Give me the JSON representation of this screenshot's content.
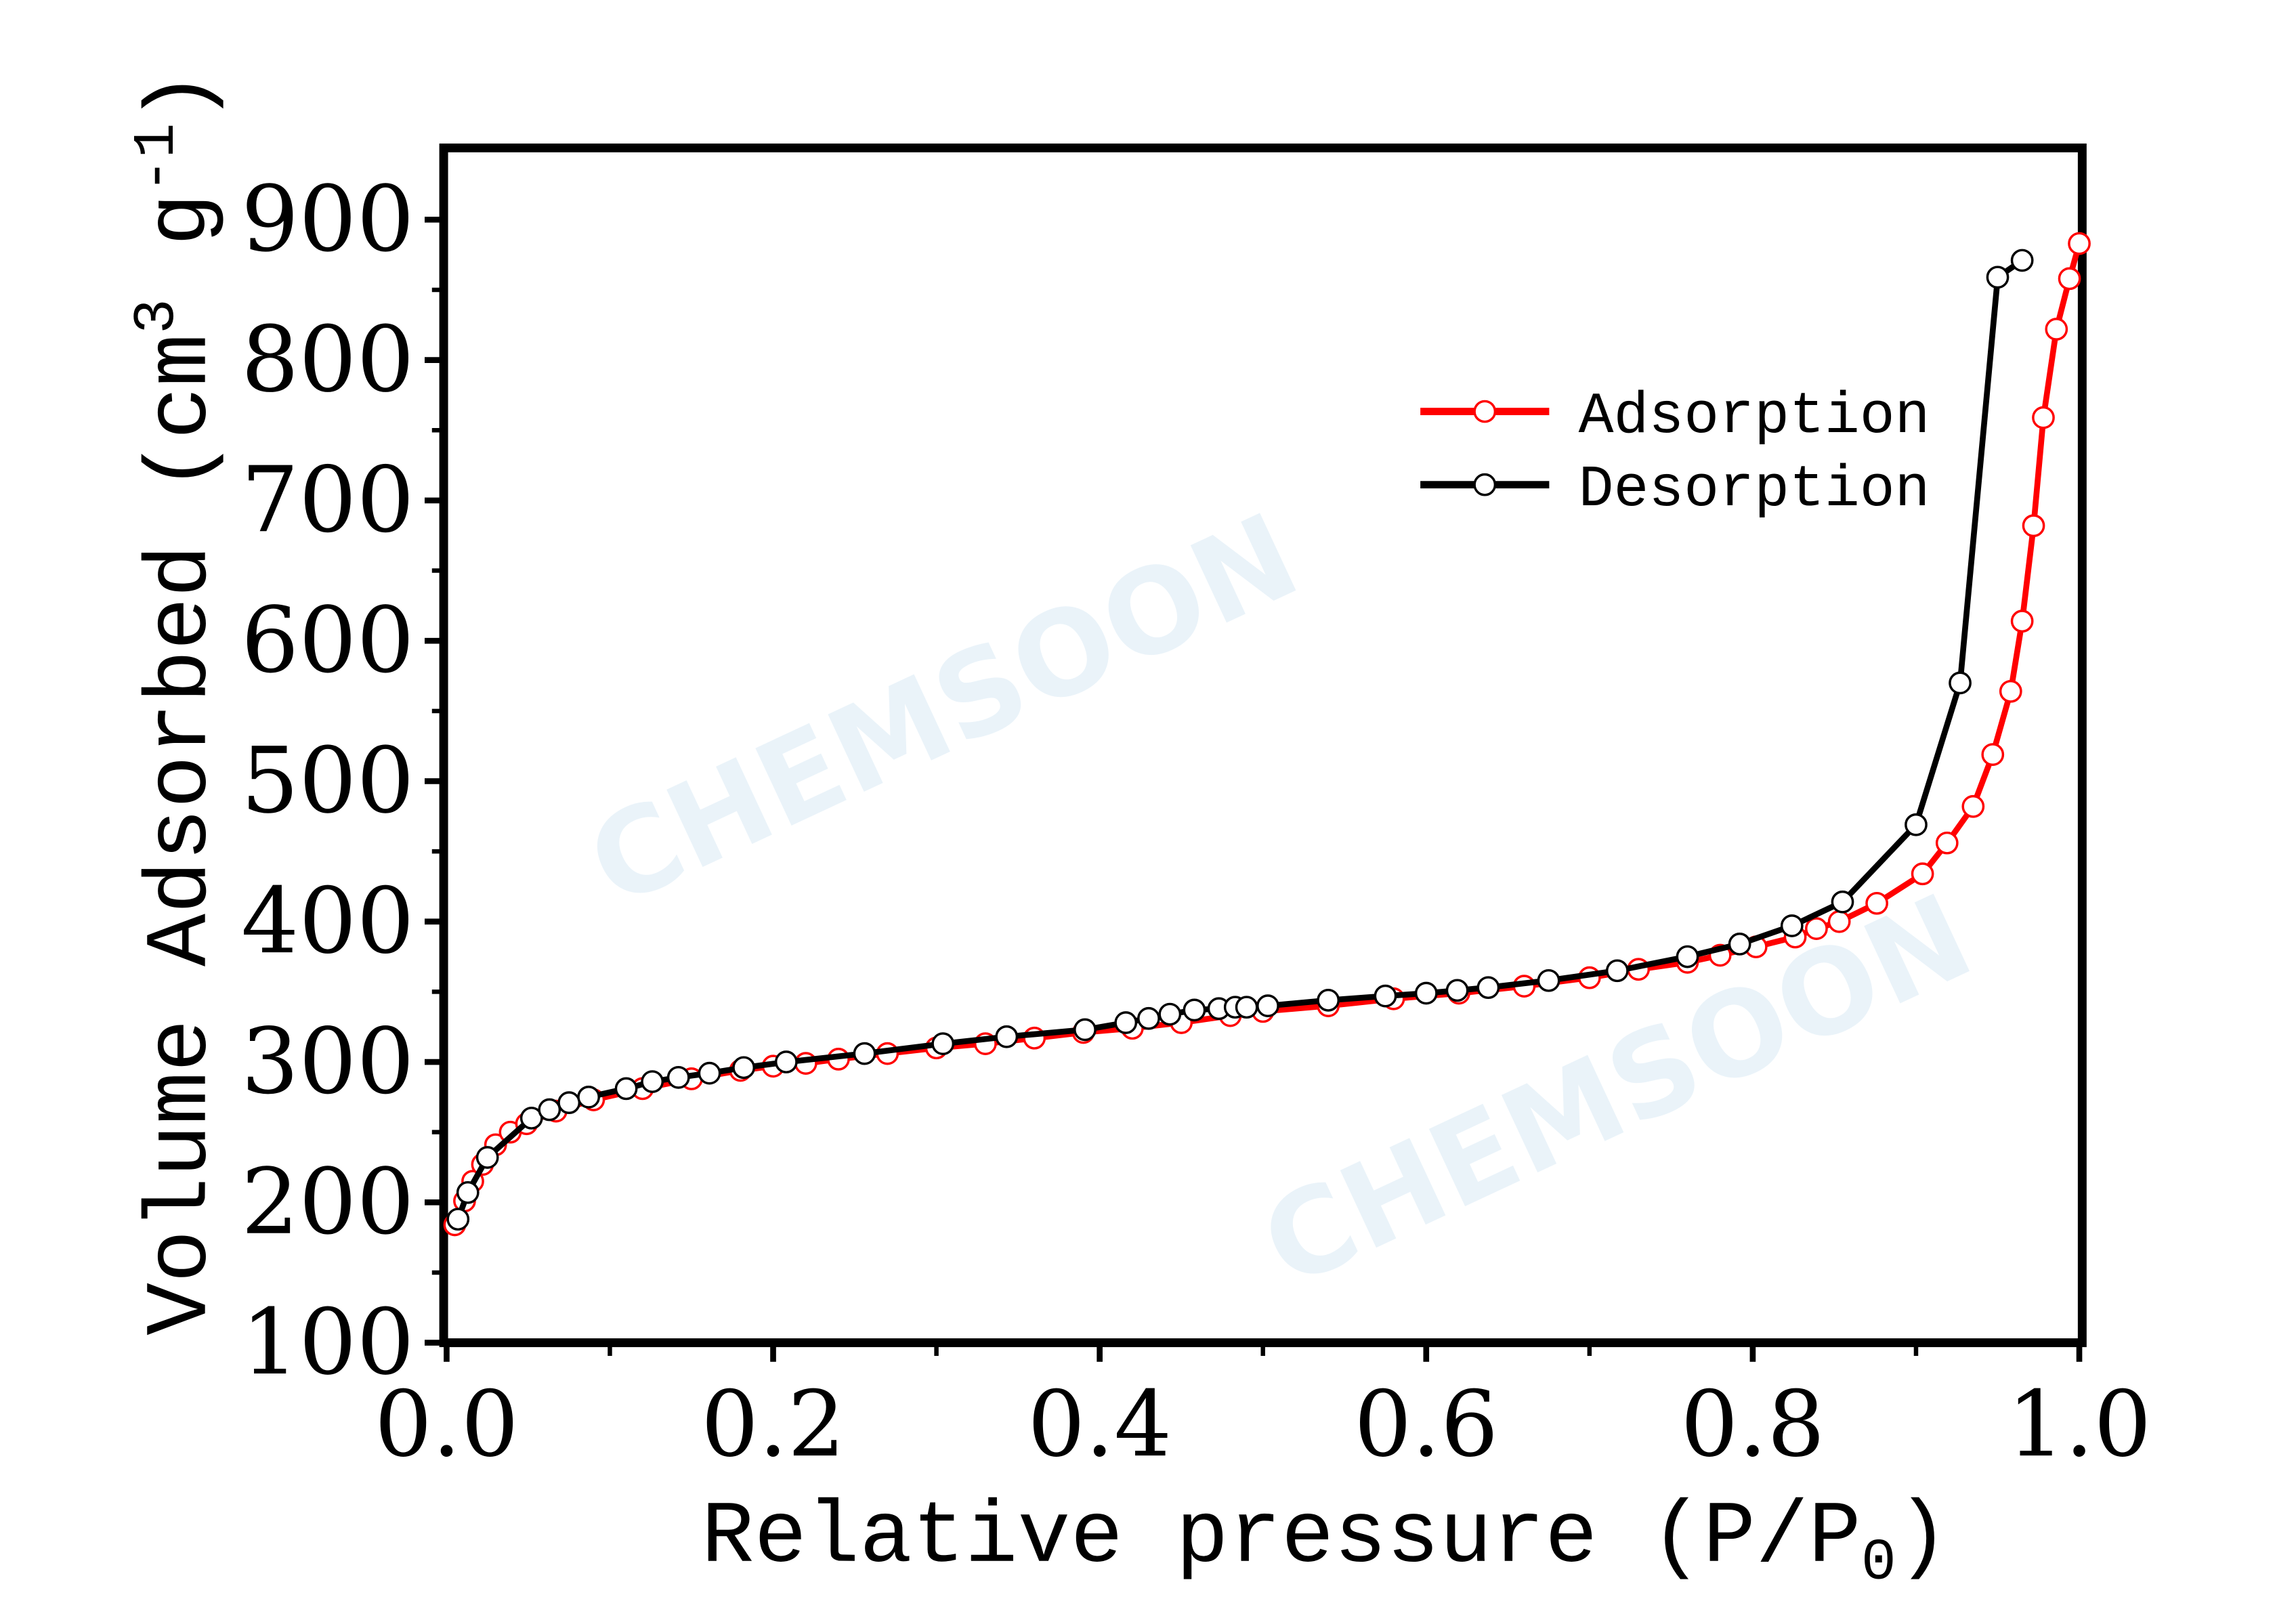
{
  "watermark": "CHEMSOON",
  "chart_data": {
    "type": "line",
    "title": "",
    "xlabel": "Relative pressure (P/P0)",
    "xlabel_parts": {
      "main": "Relative pressure (P",
      "slash": "/",
      "p": "P",
      "sub": "0",
      "close": ")"
    },
    "ylabel": "Volume Adsorbed (cm3 g-1)",
    "ylabel_parts": {
      "main": "Volume Adsorbed (cm",
      "sup1": "3",
      "mid": " g",
      "sup2": "-1",
      "close": ")"
    },
    "xlim": [
      0.0,
      1.0
    ],
    "ylim": [
      100,
      900
    ],
    "xticks": [
      "0.0",
      "0.2",
      "0.4",
      "0.6",
      "0.8",
      "1.0"
    ],
    "yticks": [
      "100",
      "200",
      "300",
      "400",
      "500",
      "600",
      "700",
      "800",
      "900"
    ],
    "grid": false,
    "legend_position": "top-right",
    "series": [
      {
        "name": "Adsorption",
        "color": "#ff0000",
        "marker": "open-circle",
        "x": [
          0.005,
          0.011,
          0.016,
          0.022,
          0.03,
          0.039,
          0.049,
          0.067,
          0.09,
          0.12,
          0.15,
          0.18,
          0.2,
          0.22,
          0.24,
          0.27,
          0.3,
          0.33,
          0.36,
          0.39,
          0.42,
          0.45,
          0.48,
          0.5,
          0.54,
          0.58,
          0.62,
          0.66,
          0.7,
          0.73,
          0.76,
          0.78,
          0.802,
          0.826,
          0.839,
          0.853,
          0.876,
          0.904,
          0.919,
          0.935,
          0.947,
          0.958,
          0.965,
          0.972,
          0.978,
          0.986,
          0.994,
          1.0
        ],
        "y": [
          184,
          201,
          215,
          227,
          241,
          250,
          256,
          265,
          273,
          281,
          288,
          294,
          297,
          299,
          302,
          306,
          310,
          313,
          317,
          321,
          324,
          328,
          333,
          336,
          340,
          345,
          349,
          354,
          360,
          366,
          371,
          376,
          382,
          389,
          395,
          400,
          413,
          434,
          456,
          482,
          519,
          564,
          614,
          682,
          759,
          822,
          858,
          883
        ]
      },
      {
        "name": "Desorption",
        "color": "#000000",
        "marker": "open-circle",
        "x": [
          0.007,
          0.013,
          0.025,
          0.052,
          0.063,
          0.075,
          0.087,
          0.11,
          0.126,
          0.142,
          0.161,
          0.182,
          0.208,
          0.256,
          0.304,
          0.343,
          0.391,
          0.416,
          0.43,
          0.443,
          0.458,
          0.473,
          0.483,
          0.49,
          0.503,
          0.54,
          0.575,
          0.6,
          0.619,
          0.638,
          0.675,
          0.717,
          0.76,
          0.792,
          0.824,
          0.855,
          0.9,
          0.927,
          0.95,
          0.965
        ],
        "y": [
          188,
          207,
          232,
          260,
          266,
          271,
          275,
          281,
          286,
          289,
          292,
          296,
          300,
          306,
          313,
          318,
          323,
          328,
          331,
          334,
          337,
          338,
          339,
          339,
          340,
          344,
          347,
          349,
          351,
          353,
          358,
          365,
          375,
          384,
          397,
          414,
          469,
          570,
          859,
          871
        ]
      }
    ]
  }
}
